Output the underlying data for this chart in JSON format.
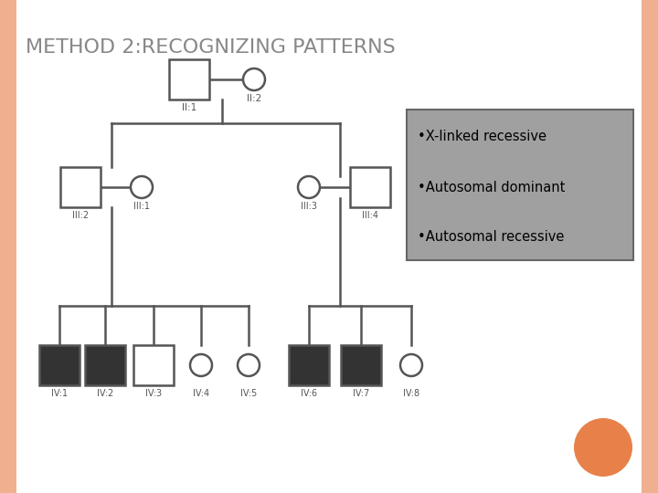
{
  "title": "Method 2:Recognizing Patterns",
  "background_color": "#ffffff",
  "border_left_color": "#f0b090",
  "border_right_color": "#f0b090",
  "legend_items": [
    "•X-linked recessive",
    "•Autosomal dominant",
    "•Autosomal recessive"
  ],
  "legend_bg": "#a0a0a0",
  "legend_border": "#666666",
  "orange_circle_color": "#e8804a",
  "line_color": "#555555",
  "shape_edge_color": "#555555",
  "label_color": "#555555",
  "title_color": "#666666"
}
